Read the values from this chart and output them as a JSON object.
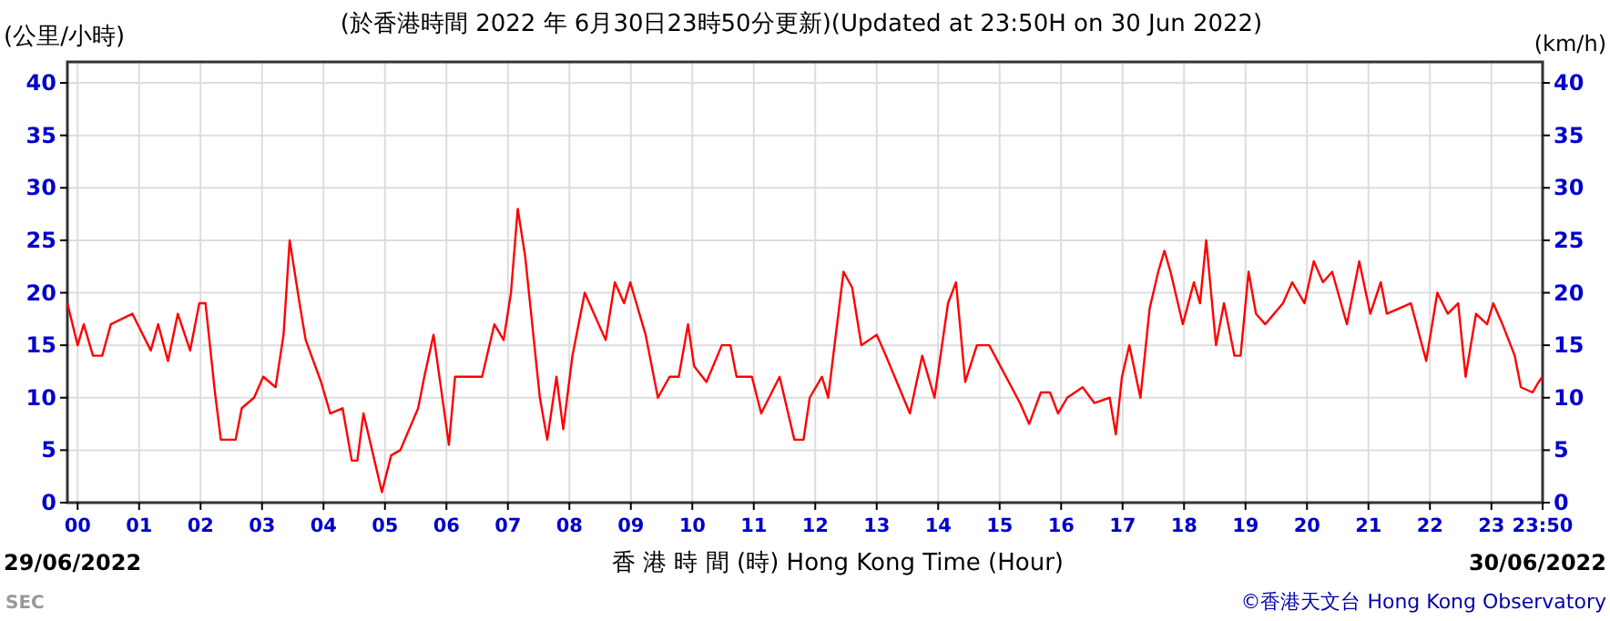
{
  "chart_data": {
    "type": "line",
    "title": "(於香港時間 2022 年 6月30日23時50分更新)(Updated at 23:50H on 30 Jun 2022)",
    "ylabel": "(公里/小時)",
    "y2label": "(km/h)",
    "xlabel": "香 港 時 間 (時) Hong Kong Time (Hour)",
    "annotations": [
      "29/06/2022",
      "30/06/2022",
      "SEC",
      "©香港天文台 Hong Kong Observatory"
    ],
    "color": "#ff0000",
    "grid": true,
    "line_style": "solid",
    "xlim": [
      -0.1667,
      23.8333
    ],
    "xticks": [
      {
        "value": 0,
        "label": "00"
      },
      {
        "value": 1,
        "label": "01"
      },
      {
        "value": 2,
        "label": "02"
      },
      {
        "value": 3,
        "label": "03"
      },
      {
        "value": 4,
        "label": "04"
      },
      {
        "value": 5,
        "label": "05"
      },
      {
        "value": 6,
        "label": "06"
      },
      {
        "value": 7,
        "label": "07"
      },
      {
        "value": 8,
        "label": "08"
      },
      {
        "value": 9,
        "label": "09"
      },
      {
        "value": 10,
        "label": "10"
      },
      {
        "value": 11,
        "label": "11"
      },
      {
        "value": 12,
        "label": "12"
      },
      {
        "value": 13,
        "label": "13"
      },
      {
        "value": 14,
        "label": "14"
      },
      {
        "value": 15,
        "label": "15"
      },
      {
        "value": 16,
        "label": "16"
      },
      {
        "value": 17,
        "label": "17"
      },
      {
        "value": 18,
        "label": "18"
      },
      {
        "value": 19,
        "label": "19"
      },
      {
        "value": 20,
        "label": "20"
      },
      {
        "value": 21,
        "label": "21"
      },
      {
        "value": 22,
        "label": "22"
      },
      {
        "value": 23,
        "label": "23"
      },
      {
        "value": 23.8333,
        "label": "23:50"
      }
    ],
    "ylim": [
      0,
      42
    ],
    "yticks": [
      0,
      5,
      10,
      15,
      20,
      25,
      30,
      35,
      40
    ],
    "y2lim": [
      0,
      42
    ],
    "y2ticks": [
      0,
      5,
      10,
      15,
      20,
      25,
      30,
      35,
      40
    ],
    "x": [
      -0.1667,
      0,
      0.1,
      0.25,
      0.4,
      0.54,
      0.89,
      1.19,
      1.31,
      1.47,
      1.63,
      1.83,
      1.98,
      2.08,
      2.23,
      2.33,
      2.57,
      2.67,
      2.87,
      3.02,
      3.22,
      3.35,
      3.45,
      3.61,
      3.71,
      3.96,
      4.11,
      4.31,
      4.46,
      4.55,
      4.65,
      4.75,
      4.95,
      5.1,
      5.25,
      5.54,
      5.64,
      5.79,
      6.04,
      6.14,
      6.58,
      6.78,
      6.93,
      7.05,
      7.16,
      7.28,
      7.52,
      7.64,
      7.79,
      7.9,
      8.05,
      8.25,
      8.4,
      8.59,
      8.74,
      8.89,
      8.99,
      9.24,
      9.44,
      9.63,
      9.78,
      9.93,
      10.03,
      10.23,
      10.48,
      10.62,
      10.72,
      10.97,
      11.12,
      11.42,
      11.66,
      11.81,
      11.91,
      12.11,
      12.21,
      12.46,
      12.6,
      12.75,
      13,
      13.15,
      13.54,
      13.74,
      13.94,
      14.16,
      14.29,
      14.44,
      14.63,
      14.83,
      15.33,
      15.48,
      15.67,
      15.82,
      15.95,
      16.1,
      16.35,
      16.54,
      16.79,
      16.89,
      16.99,
      17.11,
      17.29,
      17.44,
      17.58,
      17.68,
      17.78,
      17.98,
      18.16,
      18.26,
      18.36,
      18.52,
      18.65,
      18.82,
      18.92,
      19.05,
      19.17,
      19.32,
      19.61,
      19.76,
      19.96,
      20.11,
      20.26,
      20.41,
      20.65,
      20.85,
      21.03,
      21.2,
      21.3,
      21.69,
      21.94,
      22.12,
      22.29,
      22.46,
      22.58,
      22.75,
      22.93,
      23.03,
      23.18,
      23.38,
      23.48,
      23.67,
      23.77,
      23.83
    ],
    "values": [
      19,
      15,
      17,
      14,
      14,
      17,
      18,
      14.5,
      17,
      13.5,
      18,
      14.5,
      19,
      19,
      10.7,
      6,
      6,
      9,
      10,
      12,
      11,
      16,
      25,
      19,
      15.5,
      11.5,
      8.5,
      9,
      4,
      4,
      8.5,
      6,
      1,
      4.5,
      5,
      9,
      12,
      16,
      5.5,
      12,
      12,
      17,
      15.5,
      20,
      28,
      23.5,
      10,
      6,
      12,
      7,
      14,
      20,
      18,
      15.5,
      21,
      19,
      21,
      16,
      10,
      12,
      12,
      17,
      13,
      11.5,
      15,
      15,
      12,
      12,
      8.5,
      12,
      6,
      6,
      10,
      12,
      10,
      22,
      20.5,
      15,
      16,
      14,
      8.5,
      14,
      10,
      19,
      21,
      11.5,
      15,
      15,
      9.5,
      7.5,
      10.5,
      10.5,
      8.5,
      10,
      11,
      9.5,
      10,
      6.5,
      12,
      15,
      10,
      18.5,
      22,
      24,
      22,
      17,
      21,
      19,
      25,
      15,
      19,
      14,
      14,
      22,
      18,
      17,
      19,
      21,
      19,
      23,
      21,
      22,
      17,
      23,
      18,
      21,
      18,
      19,
      13.5,
      20,
      18,
      19,
      12,
      18,
      17,
      19,
      17,
      14,
      11,
      10.5,
      11.5,
      12
    ]
  }
}
